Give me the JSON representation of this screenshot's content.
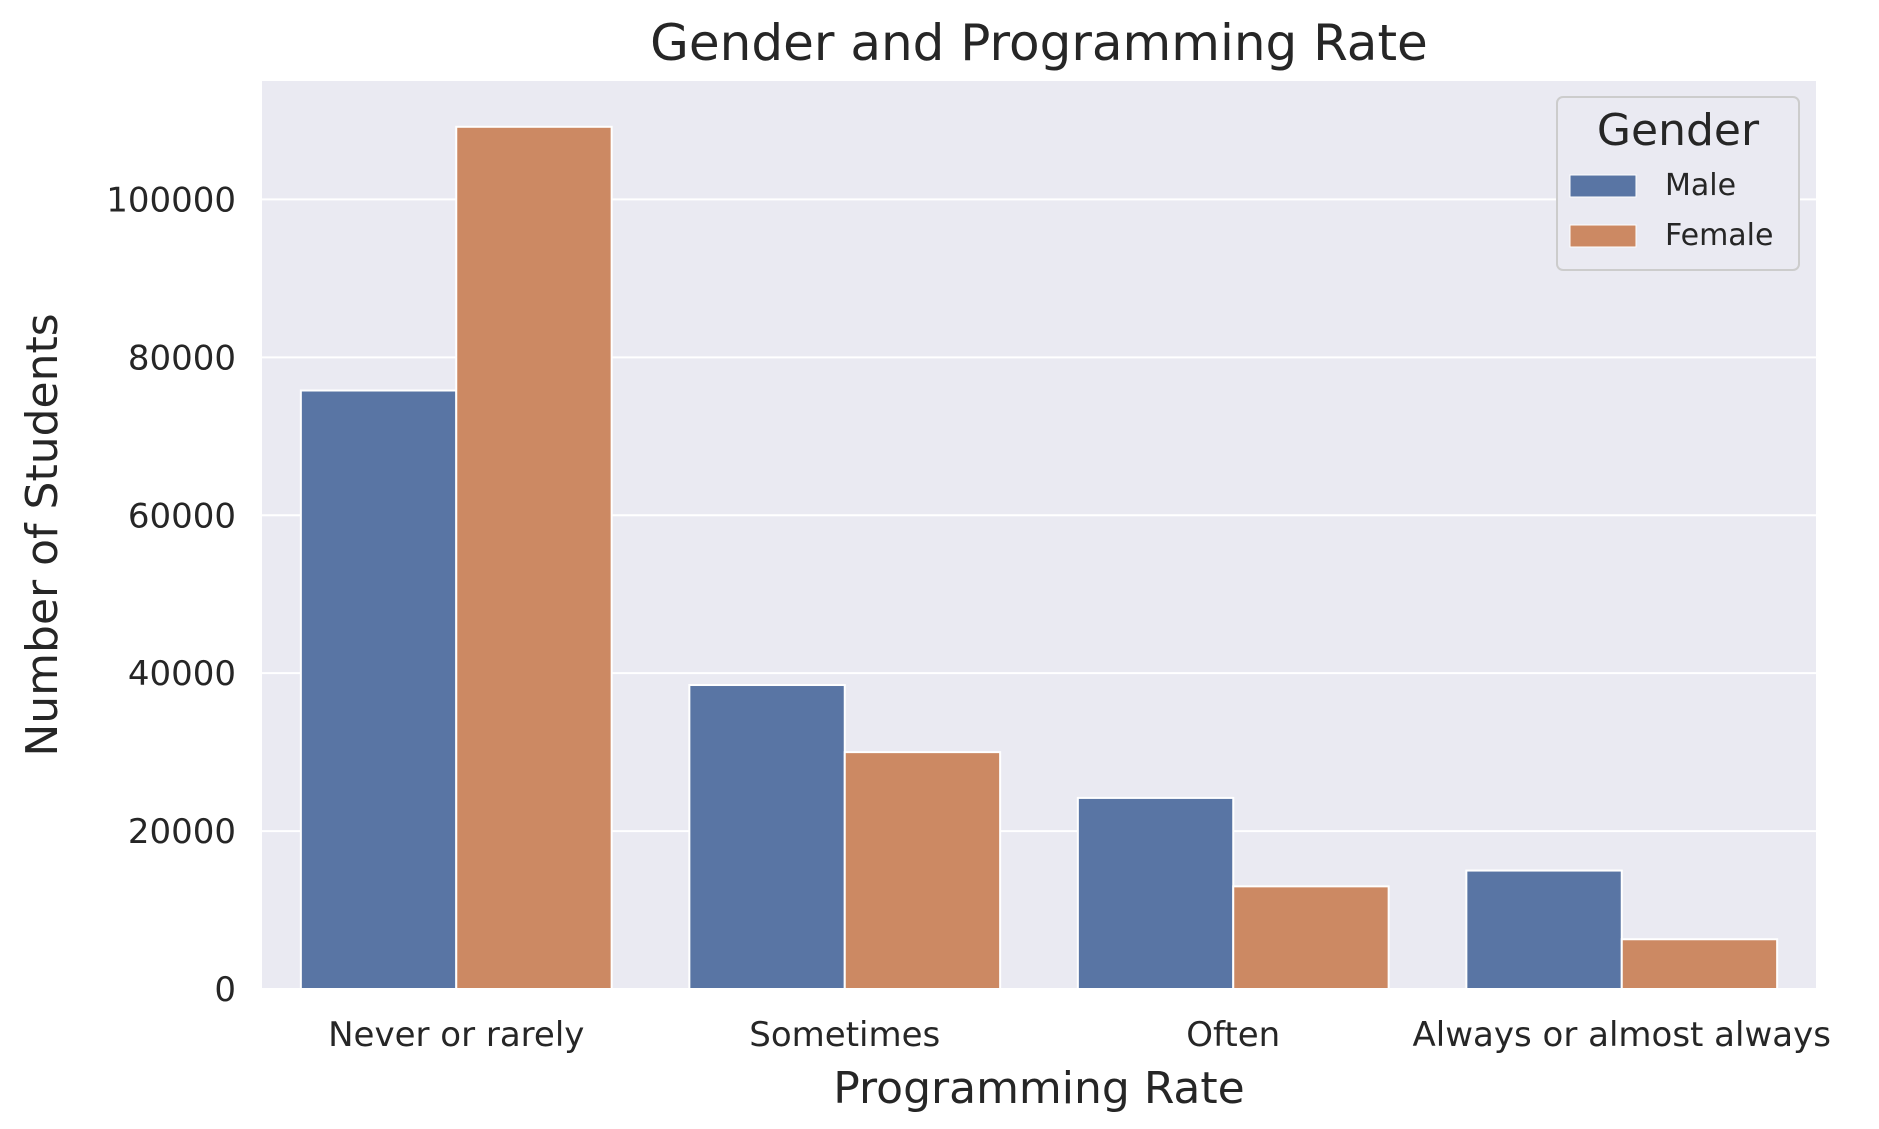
{
  "chart_data": {
    "type": "bar",
    "title": "Gender and Programming Rate",
    "xlabel": "Programming Rate",
    "ylabel": "Number of Students",
    "categories": [
      "Never or rarely",
      "Sometimes",
      "Often",
      "Always or almost always"
    ],
    "series": [
      {
        "name": "Male",
        "values": [
          75800,
          38500,
          24200,
          15000
        ],
        "color": "#5975a4"
      },
      {
        "name": "Female",
        "values": [
          109200,
          30000,
          13000,
          6300
        ],
        "color": "#cc8963"
      }
    ],
    "ylim": [
      0,
      115000
    ],
    "yticks": [
      0,
      20000,
      40000,
      60000,
      80000,
      100000
    ],
    "ytick_labels": [
      "0",
      "20000",
      "40000",
      "60000",
      "80000",
      "100000"
    ],
    "grid": true,
    "legend": {
      "title": "Gender",
      "placement": "top-right"
    },
    "colors": {
      "background": "#eaeaf2",
      "grid": "#ffffff"
    }
  }
}
